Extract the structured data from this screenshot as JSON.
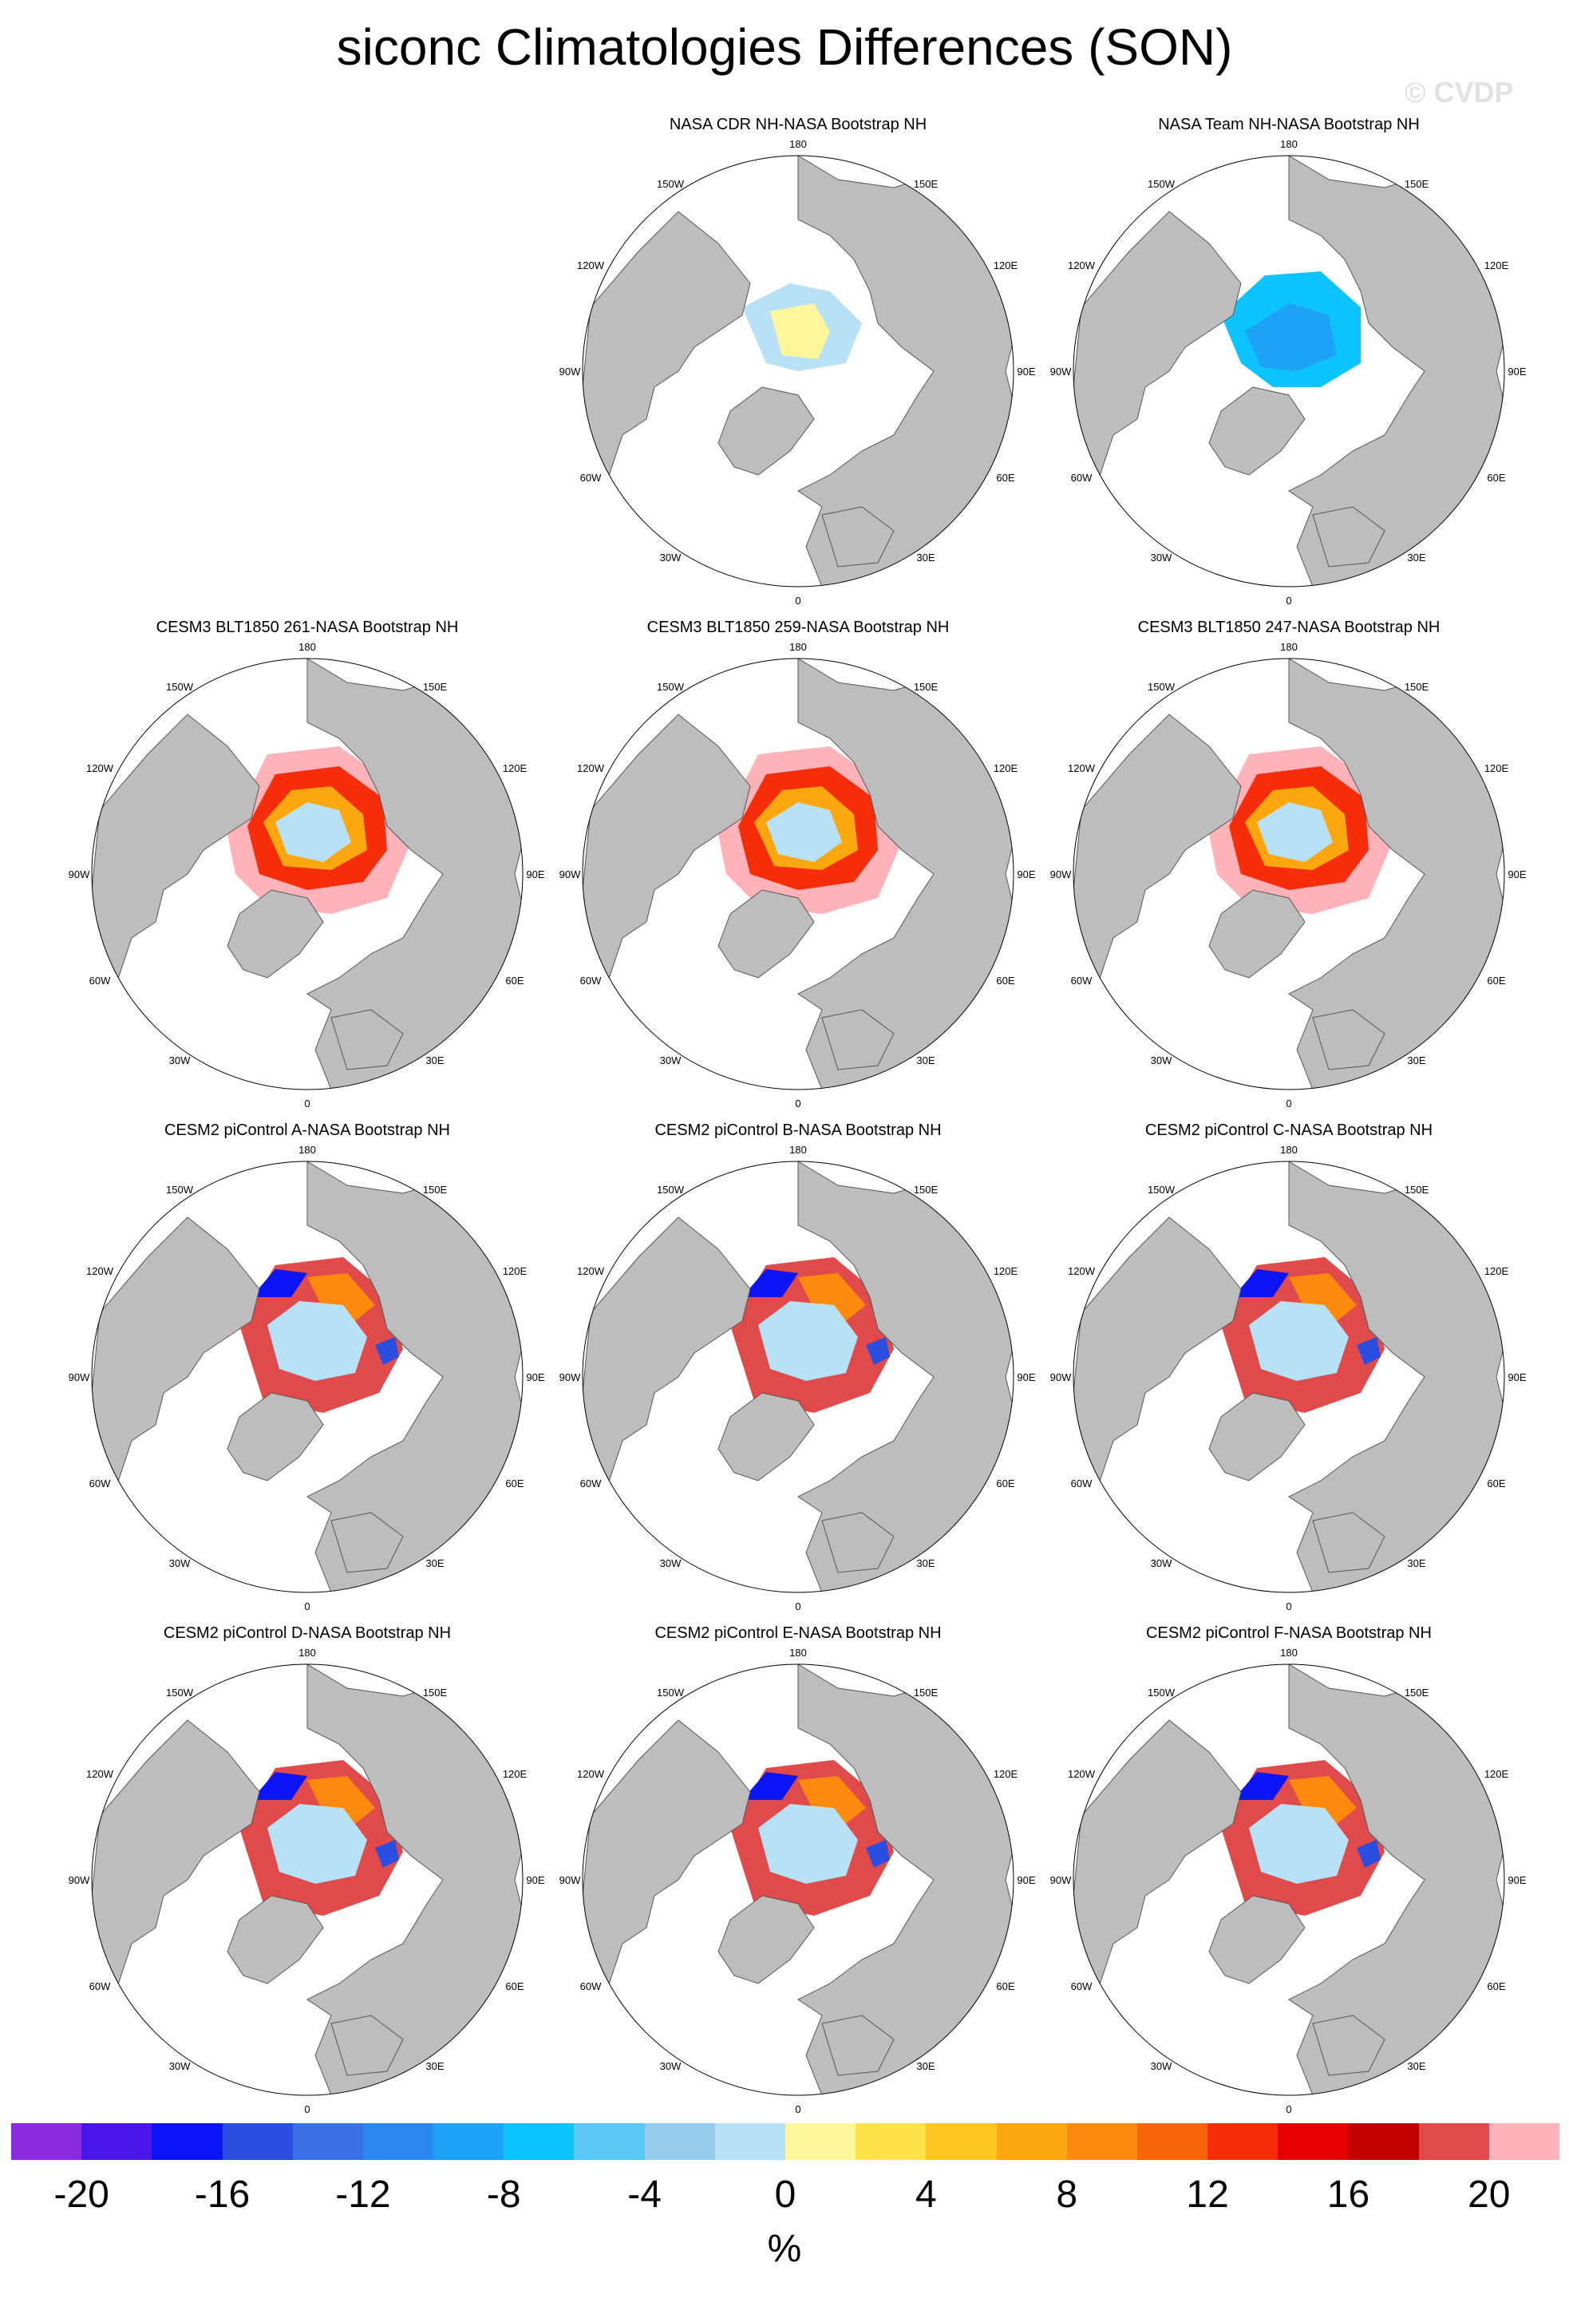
{
  "title": "siconc Climatologies Differences (SON)",
  "credit": "© CVDP",
  "unit": "%",
  "map_labels": {
    "top": "180",
    "bottom": "0",
    "left": "90W",
    "right": "90E",
    "ul1": "150W",
    "ur1": "150E",
    "ul2": "120W",
    "ur2": "120E",
    "ll1": "60W",
    "lr1": "60E",
    "ll2": "30W",
    "lr2": "30E"
  },
  "colors": {
    "land": "#bdbdbd",
    "ocean": "#ffffff",
    "coast": "#555555"
  },
  "panels": [
    {
      "title": "NASA CDR NH-NASA Bootstrap NH",
      "row": 0,
      "col": 1,
      "pattern": "cdr"
    },
    {
      "title": "NASA Team NH-NASA Bootstrap NH",
      "row": 0,
      "col": 2,
      "pattern": "team"
    },
    {
      "title": "CESM3 BLT1850 261-NASA Bootstrap NH",
      "row": 1,
      "col": 0,
      "pattern": "cesm3"
    },
    {
      "title": "CESM3 BLT1850 259-NASA Bootstrap NH",
      "row": 1,
      "col": 1,
      "pattern": "cesm3"
    },
    {
      "title": "CESM3 BLT1850 247-NASA Bootstrap NH",
      "row": 1,
      "col": 2,
      "pattern": "cesm3"
    },
    {
      "title": "CESM2 piControl A-NASA Bootstrap NH",
      "row": 2,
      "col": 0,
      "pattern": "cesm2"
    },
    {
      "title": "CESM2 piControl B-NASA Bootstrap NH",
      "row": 2,
      "col": 1,
      "pattern": "cesm2"
    },
    {
      "title": "CESM2 piControl C-NASA Bootstrap NH",
      "row": 2,
      "col": 2,
      "pattern": "cesm2"
    },
    {
      "title": "CESM2 piControl D-NASA Bootstrap NH",
      "row": 3,
      "col": 0,
      "pattern": "cesm2"
    },
    {
      "title": "CESM2 piControl E-NASA Bootstrap NH",
      "row": 3,
      "col": 1,
      "pattern": "cesm2"
    },
    {
      "title": "CESM2 piControl F-NASA Bootstrap NH",
      "row": 3,
      "col": 2,
      "pattern": "cesm2"
    }
  ],
  "colorbar": {
    "colors": [
      "#8a2be2",
      "#4b17e8",
      "#0a14f5",
      "#2a4fe0",
      "#3a70e6",
      "#2b87f0",
      "#1ea2f5",
      "#0ec4ff",
      "#5cc8f5",
      "#96cdec",
      "#b7e1f5",
      "#fff69c",
      "#fde24a",
      "#fdc521",
      "#fca70f",
      "#fb8a0e",
      "#f8650b",
      "#f62d0a",
      "#e60000",
      "#c20000",
      "#e04a4a",
      "#ffb3b8"
    ],
    "tick_labels": [
      "-20",
      "-16",
      "-12",
      "-8",
      "-4",
      "0",
      "4",
      "8",
      "12",
      "16",
      "20"
    ]
  }
}
